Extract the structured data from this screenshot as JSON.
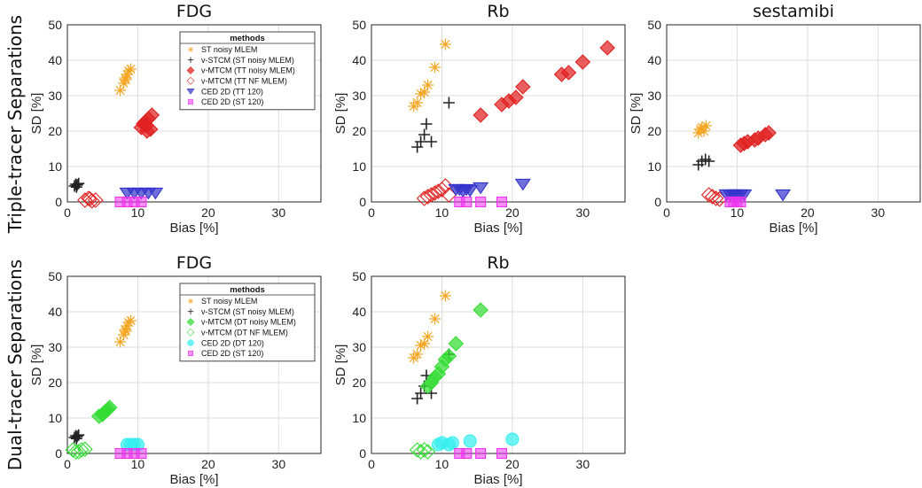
{
  "row_labels": [
    "Triple-tracer Separations",
    "Dual-tracer Separations"
  ],
  "colors": {
    "st": "#f5a623",
    "vstcm": "#222222",
    "red": "#e02020",
    "blue": "#3333cc",
    "green": "#33dd33",
    "cyan": "#33eeee",
    "magenta": "#ee33ee"
  },
  "chart_data": [
    {
      "type": "scatter",
      "title": "FDG",
      "xlabel": "Bias [%]",
      "ylabel": "SD [%]",
      "xlim": [
        0,
        36
      ],
      "ylim": [
        0,
        50
      ],
      "xticks": [
        "0",
        "10",
        "20",
        "30"
      ],
      "yticks": [
        "0",
        "10",
        "20",
        "30",
        "40",
        "50"
      ],
      "grid": true,
      "legend": {
        "title": "methods",
        "position": "top-right",
        "entries": [
          "ST noisy MLEM",
          "v-STCM (ST noisy MLEM)",
          "v-MTCM (TT noisy MLEM)",
          "v-MTCM (TT NF MLEM)",
          "CED 2D (TT 120)",
          "CED 2D (ST 120)"
        ]
      },
      "series": [
        {
          "name": "ST noisy MLEM",
          "marker": "asterisk",
          "color": "#f5a623",
          "x": [
            7.5,
            8.0,
            8.2,
            8.5,
            8.7,
            9.0,
            8.3
          ],
          "y": [
            31.5,
            33.5,
            35.0,
            36.0,
            37.0,
            37.5,
            34.5
          ]
        },
        {
          "name": "v-STCM (ST noisy MLEM)",
          "marker": "plus",
          "color": "#222222",
          "x": [
            1.0,
            1.2,
            1.4,
            1.6,
            1.3
          ],
          "y": [
            4.5,
            5.0,
            4.8,
            5.2,
            4.2
          ]
        },
        {
          "name": "v-MTCM (TT noisy MLEM)",
          "marker": "diamond-filled",
          "color": "#e02020",
          "x": [
            10.5,
            11.0,
            11.5,
            12.0,
            11.2,
            10.8,
            11.8,
            11.3
          ],
          "y": [
            21.0,
            22.5,
            23.5,
            24.5,
            21.5,
            22.0,
            20.5,
            20.0
          ]
        },
        {
          "name": "v-MTCM (TT NF MLEM)",
          "marker": "diamond-open",
          "color": "#e02020",
          "x": [
            2.5,
            3.0,
            3.5,
            4.0,
            3.2
          ],
          "y": [
            0.5,
            1.0,
            0.3,
            0.5,
            0.8
          ]
        },
        {
          "name": "CED 2D (TT 120)",
          "marker": "triangle-down",
          "color": "#3333cc",
          "x": [
            8.5,
            9.5,
            10.5,
            11.5,
            12.5
          ],
          "y": [
            2.5,
            2.5,
            2.5,
            2.5,
            2.5
          ]
        },
        {
          "name": "CED 2D (ST 120)",
          "marker": "square",
          "color": "#ee33ee",
          "x": [
            7.5,
            8.5,
            9.5,
            10.5
          ],
          "y": [
            0.0,
            0.0,
            0.0,
            0.0
          ]
        }
      ]
    },
    {
      "type": "scatter",
      "title": "Rb",
      "xlabel": "Bias [%]",
      "ylabel": "SD [%]",
      "xlim": [
        0,
        36
      ],
      "ylim": [
        0,
        50
      ],
      "xticks": [
        "0",
        "10",
        "20",
        "30"
      ],
      "yticks": [
        "0",
        "10",
        "20",
        "30",
        "40",
        "50"
      ],
      "grid": true,
      "series": [
        {
          "name": "ST noisy MLEM",
          "marker": "asterisk",
          "color": "#f5a623",
          "x": [
            6.0,
            6.5,
            7.0,
            7.5,
            8.0,
            9.0,
            10.5
          ],
          "y": [
            27.0,
            28.0,
            30.5,
            31.0,
            33.0,
            38.0,
            44.5
          ]
        },
        {
          "name": "v-STCM (ST noisy MLEM)",
          "marker": "plus",
          "color": "#222222",
          "x": [
            6.5,
            7.0,
            7.5,
            7.8,
            8.5,
            11.0
          ],
          "y": [
            15.5,
            17.0,
            19.0,
            22.0,
            17.0,
            28.0
          ]
        },
        {
          "name": "v-MTCM (TT noisy MLEM)",
          "marker": "diamond-filled",
          "color": "#e02020",
          "x": [
            15.5,
            18.5,
            19.5,
            20.5,
            21.5,
            27.0,
            28.0,
            30.0,
            33.5
          ],
          "y": [
            24.5,
            27.5,
            28.5,
            29.5,
            32.5,
            36.0,
            36.5,
            39.5,
            43.5
          ]
        },
        {
          "name": "v-MTCM (TT NF MLEM)",
          "marker": "diamond-open",
          "color": "#e02020",
          "x": [
            7.5,
            8.0,
            8.5,
            9.0,
            9.5,
            10.0,
            10.5,
            11.0
          ],
          "y": [
            1.0,
            1.5,
            2.0,
            2.5,
            3.0,
            3.5,
            4.5,
            2.0
          ]
        },
        {
          "name": "CED 2D (TT 120)",
          "marker": "triangle-down",
          "color": "#3333cc",
          "x": [
            12.0,
            12.5,
            13.0,
            13.5,
            14.0,
            15.5,
            21.5
          ],
          "y": [
            3.5,
            3.5,
            3.0,
            3.5,
            3.2,
            4.0,
            5.0
          ]
        },
        {
          "name": "CED 2D (ST 120)",
          "marker": "square",
          "color": "#ee33ee",
          "x": [
            12.5,
            13.5,
            15.5,
            18.5
          ],
          "y": [
            0.0,
            0.0,
            0.0,
            0.0
          ]
        }
      ]
    },
    {
      "type": "scatter",
      "title": "sestamibi",
      "xlabel": "Bias [%]",
      "ylabel": "SD [%]",
      "xlim": [
        0,
        36
      ],
      "ylim": [
        0,
        50
      ],
      "xticks": [
        "0",
        "10",
        "20",
        "30"
      ],
      "yticks": [
        "0",
        "10",
        "20",
        "30",
        "40",
        "50"
      ],
      "grid": true,
      "series": [
        {
          "name": "ST noisy MLEM",
          "marker": "asterisk",
          "color": "#f5a623",
          "x": [
            4.5,
            4.8,
            5.0,
            5.3,
            5.6
          ],
          "y": [
            19.5,
            20.5,
            21.0,
            20.0,
            21.5
          ]
        },
        {
          "name": "v-STCM (ST noisy MLEM)",
          "marker": "plus",
          "color": "#222222",
          "x": [
            4.5,
            5.0,
            5.5,
            6.0
          ],
          "y": [
            10.5,
            11.5,
            12.0,
            11.5
          ]
        },
        {
          "name": "v-MTCM (TT noisy MLEM)",
          "marker": "diamond-filled",
          "color": "#e02020",
          "x": [
            10.5,
            11.0,
            11.5,
            12.5,
            13.0,
            14.0,
            14.5
          ],
          "y": [
            16.0,
            16.5,
            17.0,
            17.5,
            18.0,
            19.0,
            19.5
          ]
        },
        {
          "name": "v-MTCM (TT NF MLEM)",
          "marker": "diamond-open",
          "color": "#e02020",
          "x": [
            6.0,
            6.5,
            7.0,
            7.5
          ],
          "y": [
            2.0,
            1.5,
            1.0,
            0.8
          ]
        },
        {
          "name": "CED 2D (TT 120)",
          "marker": "triangle-down",
          "color": "#3333cc",
          "x": [
            8.5,
            9.0,
            9.5,
            10.0,
            10.5,
            11.0,
            16.5
          ],
          "y": [
            2.0,
            2.0,
            2.0,
            2.0,
            2.0,
            2.0,
            2.0
          ]
        },
        {
          "name": "CED 2D (ST 120)",
          "marker": "square",
          "color": "#ee33ee",
          "x": [
            9.0,
            9.5,
            10.0,
            10.5
          ],
          "y": [
            0.0,
            0.0,
            0.0,
            0.0
          ]
        }
      ]
    },
    {
      "type": "scatter",
      "title": "FDG",
      "xlabel": "Bias [%]",
      "ylabel": "SD [%]",
      "xlim": [
        0,
        36
      ],
      "ylim": [
        0,
        50
      ],
      "xticks": [
        "0",
        "10",
        "20",
        "30"
      ],
      "yticks": [
        "0",
        "10",
        "20",
        "30",
        "40",
        "50"
      ],
      "grid": true,
      "legend": {
        "title": "methods",
        "position": "top-right",
        "entries": [
          "ST noisy MLEM",
          "v-STCM (ST noisy MLEM)",
          "v-MTCM (DT noisy MLEM)",
          "v-MTCM (DT NF MLEM)",
          "CED 2D (DT 120)",
          "CED 2D (ST 120)"
        ]
      },
      "series": [
        {
          "name": "ST noisy MLEM",
          "marker": "asterisk",
          "color": "#f5a623",
          "x": [
            7.5,
            8.0,
            8.2,
            8.5,
            8.7,
            9.0,
            8.3
          ],
          "y": [
            31.5,
            33.5,
            35.0,
            36.0,
            37.0,
            37.5,
            34.5
          ]
        },
        {
          "name": "v-STCM (ST noisy MLEM)",
          "marker": "plus",
          "color": "#222222",
          "x": [
            1.0,
            1.2,
            1.4,
            1.6,
            1.3
          ],
          "y": [
            4.5,
            5.0,
            4.8,
            5.2,
            4.2
          ]
        },
        {
          "name": "v-MTCM (DT noisy MLEM)",
          "marker": "diamond-filled",
          "color": "#33dd33",
          "x": [
            4.5,
            5.0,
            5.2,
            5.5,
            5.8,
            6.0
          ],
          "y": [
            10.5,
            11.0,
            11.5,
            12.0,
            12.5,
            13.0
          ]
        },
        {
          "name": "v-MTCM (DT NF MLEM)",
          "marker": "diamond-open",
          "color": "#33dd33",
          "x": [
            0.8,
            1.2,
            1.6,
            2.0,
            2.5
          ],
          "y": [
            1.0,
            0.5,
            0.5,
            1.0,
            1.2
          ]
        },
        {
          "name": "CED 2D (DT 120)",
          "marker": "circle",
          "color": "#33eeee",
          "x": [
            8.5,
            9.0,
            9.5,
            10.0
          ],
          "y": [
            2.5,
            2.5,
            2.5,
            2.5
          ]
        },
        {
          "name": "CED 2D (ST 120)",
          "marker": "square",
          "color": "#ee33ee",
          "x": [
            7.5,
            8.5,
            9.5,
            10.5
          ],
          "y": [
            0.0,
            0.0,
            0.0,
            0.0
          ]
        }
      ]
    },
    {
      "type": "scatter",
      "title": "Rb",
      "xlabel": "Bias [%]",
      "ylabel": "SD [%]",
      "xlim": [
        0,
        36
      ],
      "ylim": [
        0,
        50
      ],
      "xticks": [
        "0",
        "10",
        "20",
        "30"
      ],
      "yticks": [
        "0",
        "10",
        "20",
        "30",
        "40",
        "50"
      ],
      "grid": true,
      "series": [
        {
          "name": "ST noisy MLEM",
          "marker": "asterisk",
          "color": "#f5a623",
          "x": [
            6.0,
            6.5,
            7.0,
            7.5,
            8.0,
            9.0,
            10.5
          ],
          "y": [
            27.0,
            28.0,
            30.5,
            31.0,
            33.0,
            38.0,
            44.5
          ]
        },
        {
          "name": "v-STCM (ST noisy MLEM)",
          "marker": "plus",
          "color": "#222222",
          "x": [
            6.5,
            7.0,
            7.5,
            7.8,
            8.5,
            11.0
          ],
          "y": [
            15.5,
            17.0,
            19.0,
            22.0,
            17.0,
            28.0
          ]
        },
        {
          "name": "v-MTCM (DT noisy MLEM)",
          "marker": "diamond-filled",
          "color": "#33dd33",
          "x": [
            8.0,
            8.5,
            9.0,
            9.5,
            10.0,
            10.5,
            11.0,
            12.0,
            15.5
          ],
          "y": [
            19.0,
            20.0,
            21.5,
            22.5,
            24.5,
            26.5,
            27.5,
            31.0,
            40.5
          ]
        },
        {
          "name": "v-MTCM (DT NF MLEM)",
          "marker": "diamond-open",
          "color": "#33dd33",
          "x": [
            6.5,
            7.0,
            7.5,
            8.0
          ],
          "y": [
            1.0,
            0.5,
            1.0,
            0.5
          ]
        },
        {
          "name": "CED 2D (DT 120)",
          "marker": "circle",
          "color": "#33eeee",
          "x": [
            9.5,
            10.0,
            11.0,
            11.5,
            14.0,
            20.0
          ],
          "y": [
            2.5,
            3.0,
            2.5,
            3.0,
            3.5,
            4.0
          ]
        },
        {
          "name": "CED 2D (ST 120)",
          "marker": "square",
          "color": "#ee33ee",
          "x": [
            12.5,
            13.5,
            15.5,
            18.5
          ],
          "y": [
            0.0,
            0.0,
            0.0,
            0.0
          ]
        }
      ]
    }
  ]
}
